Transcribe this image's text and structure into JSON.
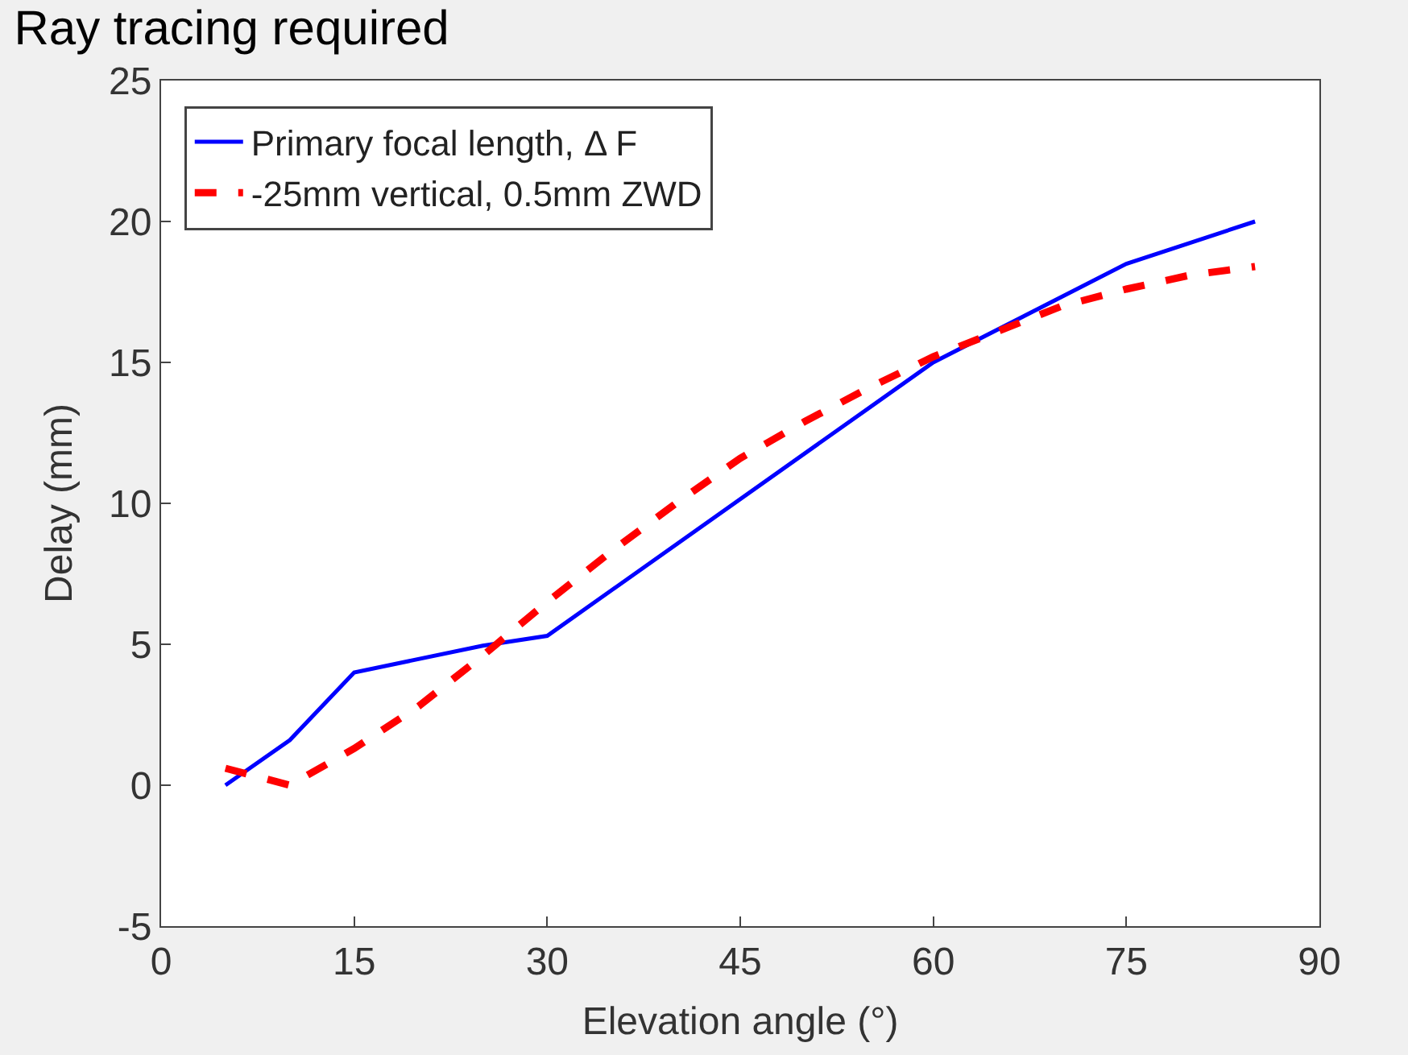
{
  "chart_data": {
    "type": "line",
    "title": "Ray tracing required",
    "xlabel": "Elevation angle (°)",
    "ylabel": "Delay (mm)",
    "xlim": [
      0,
      90
    ],
    "xticks": [
      0,
      15,
      30,
      45,
      60,
      75,
      90
    ],
    "ylim": [
      -5,
      25
    ],
    "yticks": [
      -5,
      0,
      5,
      10,
      15,
      20,
      25
    ],
    "legend": "top left",
    "series": [
      {
        "name": "Primary focal length, Δ F",
        "color": "#0000ff",
        "line_style": "solid",
        "x": [
          5,
          10,
          15,
          25,
          30,
          60,
          75,
          85
        ],
        "values": [
          0,
          1.6,
          4.0,
          4.95,
          5.3,
          15,
          18.5,
          20
        ]
      },
      {
        "name": "-25mm vertical, 0.5mm ZWD",
        "color": "#ff0000",
        "line_style": "dashed",
        "x": [
          5,
          10,
          15,
          20,
          25,
          30,
          35,
          40,
          45,
          50,
          55,
          60,
          65,
          70,
          75,
          80,
          85
        ],
        "values": [
          0.6,
          0,
          1.3,
          2.8,
          4.6,
          6.5,
          8.3,
          10,
          11.6,
          12.9,
          14.1,
          15.2,
          16.1,
          17,
          17.6,
          18.1,
          18.4
        ]
      }
    ]
  }
}
